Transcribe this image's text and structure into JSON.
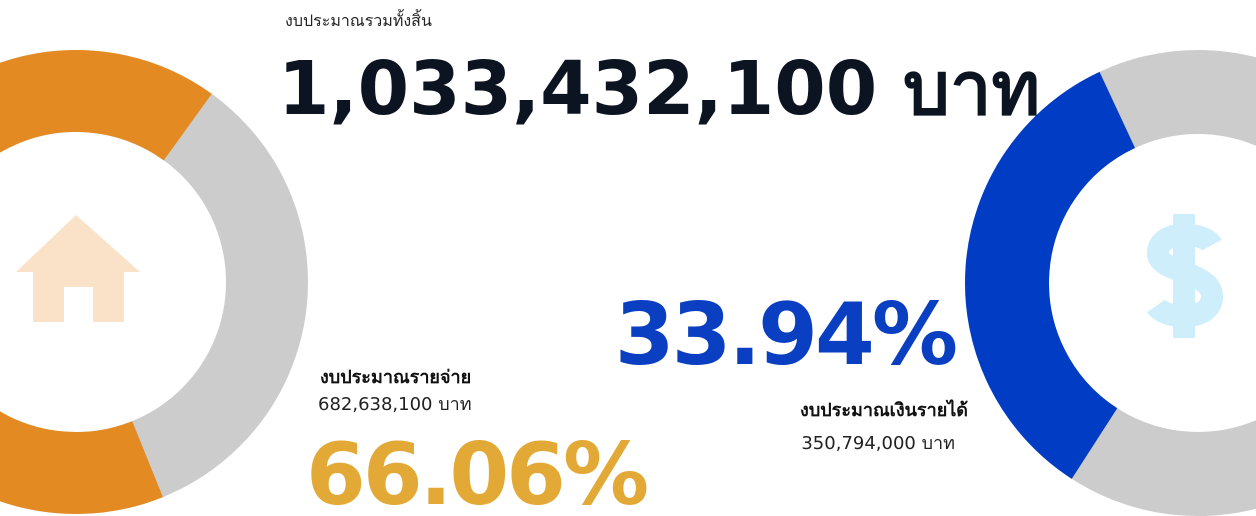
{
  "header": {
    "label": "งบประมาณรวมทั้งสิ้น",
    "total": "1,033,432,100 บาท"
  },
  "expense": {
    "label": "งบประมาณรายจ่าย",
    "amount": "682,638,100 บาท",
    "share": 66.06,
    "share_label": "66.06%",
    "color": "#e38b22"
  },
  "income": {
    "label": "งบประมาณเงินรายได้",
    "amount": "350,794,000 บาท",
    "share": 33.94,
    "share_label": "33.94%",
    "color": "#003dc4"
  }
}
